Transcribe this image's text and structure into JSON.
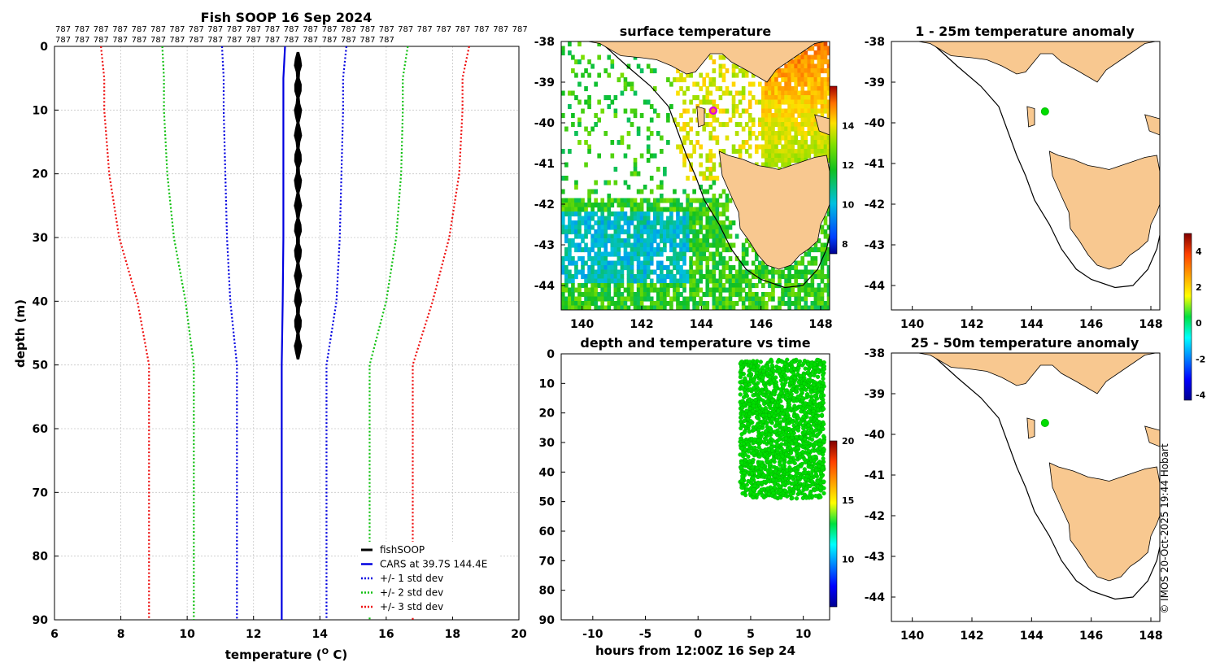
{
  "credit": "© IMOS 20-Oct-2025 19:44 Hobart",
  "chart_data": [
    {
      "id": "profile",
      "type": "line",
      "title": "Fish SOOP 16 Sep 2024",
      "header_numbers": [
        "787",
        "787",
        "787",
        "787",
        "787",
        "787",
        "787",
        "787",
        "787",
        "787",
        "787",
        "787",
        "787",
        "787",
        "787",
        "787",
        "787",
        "787",
        "787",
        "787",
        "787",
        "787",
        "787",
        "787",
        "787",
        "787",
        "787",
        "787",
        "787",
        "787",
        "787",
        "787",
        "787",
        "787",
        "787",
        "787",
        "787",
        "787",
        "787",
        "787",
        "787",
        "787",
        "787"
      ],
      "xlabel": "temperature (",
      "xlabel_sup": "O",
      "xlabel_end": " C)",
      "ylabel": "depth (m)",
      "xlim": [
        6,
        20
      ],
      "ylim": [
        0,
        90
      ],
      "y_reversed": true,
      "xticks": [
        "6",
        "8",
        "10",
        "12",
        "14",
        "16",
        "18",
        "20"
      ],
      "yticks": [
        "0",
        "10",
        "20",
        "30",
        "40",
        "50",
        "60",
        "70",
        "80",
        "90"
      ],
      "grid": true,
      "legend_position": "bottom-right",
      "depth": [
        0,
        5,
        10,
        20,
        30,
        40,
        50,
        60,
        70,
        80,
        90
      ],
      "series": [
        {
          "name": "fishSOOP",
          "color": "#000000",
          "style": "band",
          "depth_range": [
            1,
            49
          ],
          "temp_range": [
            13.2,
            13.45
          ]
        },
        {
          "name": "CARS at 39.7S 144.4E",
          "color": "#0000e0",
          "style": "solid",
          "values": [
            12.95,
            12.9,
            12.9,
            12.9,
            12.9,
            12.88,
            12.85,
            12.85,
            12.85,
            12.85,
            12.85
          ]
        },
        {
          "name": "+/- 1 std dev",
          "color": "#0000e0",
          "style": "dotted",
          "low": [
            11.05,
            11.1,
            11.1,
            11.15,
            11.2,
            11.3,
            11.5,
            11.5,
            11.5,
            11.5,
            11.5
          ],
          "high": [
            14.8,
            14.7,
            14.7,
            14.65,
            14.6,
            14.5,
            14.2,
            14.2,
            14.2,
            14.2,
            14.2
          ]
        },
        {
          "name": "+/- 2 std dev",
          "color": "#10c010",
          "style": "dotted",
          "low": [
            9.25,
            9.3,
            9.3,
            9.4,
            9.6,
            9.95,
            10.2,
            10.2,
            10.2,
            10.2,
            10.2
          ],
          "high": [
            16.65,
            16.5,
            16.5,
            16.45,
            16.3,
            16.0,
            15.5,
            15.5,
            15.5,
            15.5,
            15.5
          ]
        },
        {
          "name": "+/- 3 std dev",
          "color": "#ee1010",
          "style": "dotted",
          "low": [
            7.4,
            7.5,
            7.5,
            7.65,
            7.95,
            8.5,
            8.85,
            8.85,
            8.85,
            8.85,
            8.85
          ],
          "high": [
            18.5,
            18.3,
            18.3,
            18.2,
            17.9,
            17.4,
            16.8,
            16.8,
            16.8,
            16.8,
            16.8
          ]
        }
      ]
    },
    {
      "id": "sst",
      "type": "heatmap",
      "title": "surface temperature",
      "xlim": [
        139.3,
        148.3
      ],
      "ylim": [
        -44.6,
        -38
      ],
      "xticks": [
        "140",
        "142",
        "144",
        "146",
        "148"
      ],
      "yticks": [
        "-38",
        "-39",
        "-40",
        "-41",
        "-42",
        "-43",
        "-44"
      ],
      "colorbar": {
        "ticks": [
          "8",
          "10",
          "12",
          "14"
        ],
        "range": [
          7.5,
          16
        ]
      },
      "marker": {
        "lon": 144.4,
        "lat": -39.7
      }
    },
    {
      "id": "depthtime",
      "type": "scatter",
      "title": "depth and temperature vs time",
      "xlabel": "hours from 12:00Z 16 Sep 24",
      "xlim": [
        -13,
        12.5
      ],
      "ylim": [
        0,
        90
      ],
      "y_reversed": true,
      "xticks": [
        "-10",
        "-5",
        "0",
        "5",
        "10"
      ],
      "yticks": [
        "0",
        "10",
        "20",
        "30",
        "40",
        "50",
        "60",
        "70",
        "80",
        "90"
      ],
      "colorbar": {
        "ticks": [
          "10",
          "15",
          "20"
        ],
        "range": [
          6,
          20
        ]
      },
      "cluster": {
        "hours": [
          4,
          12
        ],
        "depth": [
          2,
          49
        ],
        "temp": 13.3
      }
    },
    {
      "id": "anom1",
      "type": "scatter",
      "title": "1 - 25m temperature anomaly",
      "xlim": [
        139.3,
        148.3
      ],
      "ylim": [
        -44.6,
        -38
      ],
      "xticks": [
        "140",
        "142",
        "144",
        "146",
        "148"
      ],
      "yticks": [
        "-38",
        "-39",
        "-40",
        "-41",
        "-42",
        "-43",
        "-44"
      ],
      "marker": {
        "lon": 144.45,
        "lat": -39.72,
        "anomaly": 0.3
      }
    },
    {
      "id": "anom2",
      "type": "scatter",
      "title": "25 - 50m temperature anomaly",
      "xlim": [
        139.3,
        148.3
      ],
      "ylim": [
        -44.6,
        -38
      ],
      "xticks": [
        "140",
        "142",
        "144",
        "146",
        "148"
      ],
      "yticks": [
        "-38",
        "-39",
        "-40",
        "-41",
        "-42",
        "-43",
        "-44"
      ],
      "marker": {
        "lon": 144.45,
        "lat": -39.72,
        "anomaly": 0.3
      }
    },
    {
      "id": "anomcb",
      "type": "colorbar",
      "ticks": [
        "-4",
        "-2",
        "0",
        "2",
        "4"
      ],
      "range": [
        -4.3,
        5
      ]
    }
  ]
}
